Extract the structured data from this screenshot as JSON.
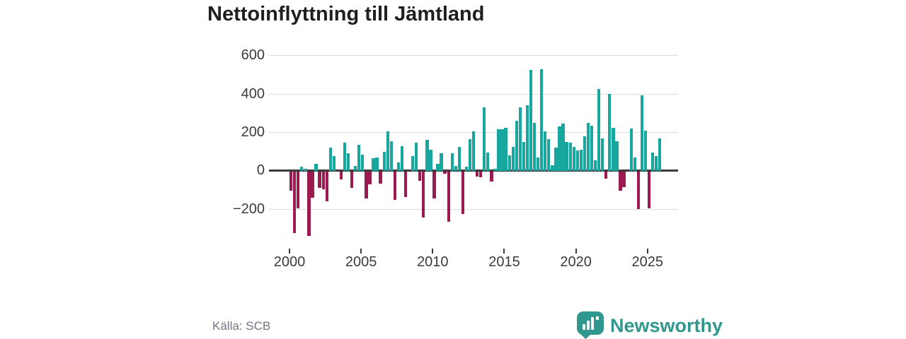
{
  "title": "Nettoinflyttning till Jämtland",
  "source": "Källa: SCB",
  "branding": {
    "name": "Newsworthy"
  },
  "colors": {
    "positive": "#17a79e",
    "negative": "#9b1b51",
    "brand": "#2f978d",
    "axis": "#3a3a3a",
    "grid": "#dcdcdc",
    "text": "#3b3b3b",
    "muted": "#6f7580"
  },
  "chart_data": {
    "type": "bar",
    "title": "Nettoinflyttning till Jämtland",
    "xlabel": "",
    "ylabel": "",
    "unit": "net migration per quarter",
    "x_start_year": 2000,
    "quarters_per_year": 4,
    "x_tick_labels": [
      "2000",
      "2005",
      "2010",
      "2015",
      "2020",
      "2025"
    ],
    "x_tick_year_step": 5,
    "y_ticks": [
      600,
      400,
      200,
      0,
      -200
    ],
    "ylim": [
      -350,
      650
    ],
    "grid": "horizontal",
    "legend": "none",
    "series": [
      {
        "year": 2000,
        "values": [
          -100,
          -320,
          -190,
          20
        ]
      },
      {
        "year": 2001,
        "values": [
          10,
          -335,
          -135,
          35
        ]
      },
      {
        "year": 2002,
        "values": [
          -85,
          -90,
          -155,
          120
        ]
      },
      {
        "year": 2003,
        "values": [
          75,
          0,
          -40,
          145
        ]
      },
      {
        "year": 2004,
        "values": [
          90,
          -85,
          25,
          135
        ]
      },
      {
        "year": 2005,
        "values": [
          85,
          -140,
          -65,
          65
        ]
      },
      {
        "year": 2006,
        "values": [
          70,
          -60,
          100,
          205
        ]
      },
      {
        "year": 2007,
        "values": [
          155,
          -145,
          45,
          130
        ]
      },
      {
        "year": 2008,
        "values": [
          -130,
          0,
          75,
          145
        ]
      },
      {
        "year": 2009,
        "values": [
          -45,
          -240,
          160,
          110
        ]
      },
      {
        "year": 2010,
        "values": [
          -140,
          35,
          90,
          -10
        ]
      },
      {
        "year": 2011,
        "values": [
          -260,
          90,
          25,
          125
        ]
      },
      {
        "year": 2012,
        "values": [
          -220,
          20,
          165,
          205
        ]
      },
      {
        "year": 2013,
        "values": [
          -25,
          -30,
          330,
          95
        ]
      },
      {
        "year": 2014,
        "values": [
          -50,
          10,
          215,
          215
        ]
      },
      {
        "year": 2015,
        "values": [
          225,
          80,
          125,
          260
        ]
      },
      {
        "year": 2016,
        "values": [
          330,
          150,
          340,
          525
        ]
      },
      {
        "year": 2017,
        "values": [
          250,
          70,
          530,
          205
        ]
      },
      {
        "year": 2018,
        "values": [
          165,
          30,
          120,
          230
        ]
      },
      {
        "year": 2019,
        "values": [
          245,
          150,
          145,
          125
        ]
      },
      {
        "year": 2020,
        "values": [
          105,
          110,
          180,
          250
        ]
      },
      {
        "year": 2021,
        "values": [
          235,
          55,
          425,
          170
        ]
      },
      {
        "year": 2022,
        "values": [
          -35,
          400,
          225,
          155
        ]
      },
      {
        "year": 2023,
        "values": [
          -100,
          -80,
          0,
          220
        ]
      },
      {
        "year": 2024,
        "values": [
          70,
          -195,
          395,
          210
        ]
      },
      {
        "year": 2025,
        "values": [
          -190,
          95,
          75,
          170
        ]
      }
    ]
  }
}
